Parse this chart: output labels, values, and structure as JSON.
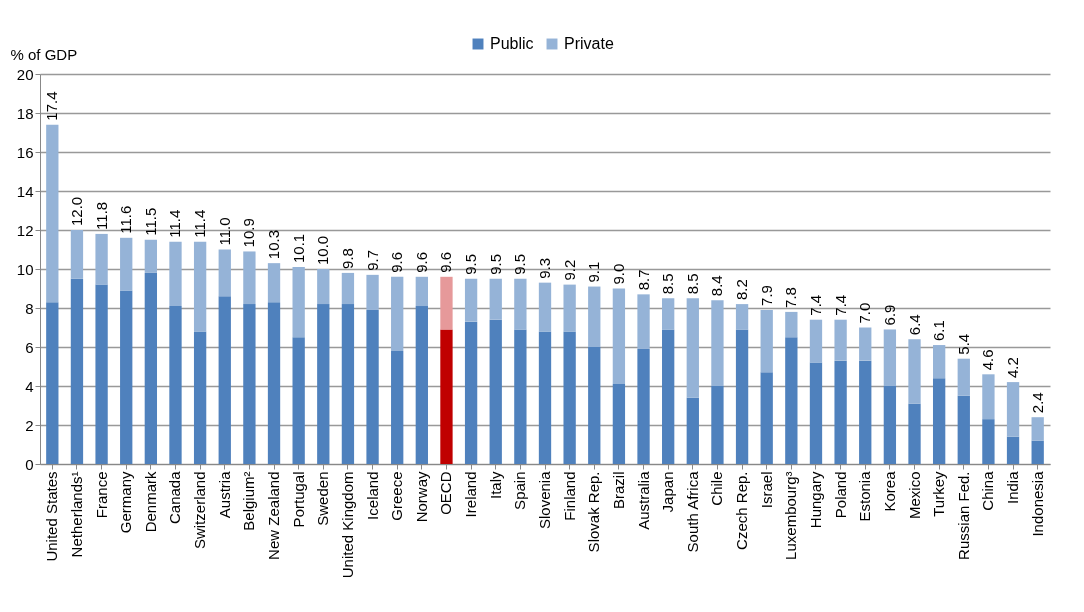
{
  "chart_data": {
    "type": "bar",
    "stacked": true,
    "ylabel": "% of GDP",
    "legend": "top",
    "grid": "y",
    "categories": [
      "United States",
      "Netherlands¹",
      "France",
      "Germany",
      "Denmark",
      "Canada",
      "Switzerland",
      "Austria",
      "Belgium²",
      "New Zealand",
      "Portugal",
      "Sweden",
      "United Kingdom",
      "Iceland",
      "Greece",
      "Norway",
      "OECD",
      "Ireland",
      "Italy",
      "Spain",
      "Slovenia",
      "Finland",
      "Slovak Rep.",
      "Brazil",
      "Australia",
      "Japan",
      "South Africa",
      "Chile",
      "Czech Rep.",
      "Israel",
      "Luxembourg³",
      "Hungary",
      "Poland",
      "Estonia",
      "Korea",
      "Mexico",
      "Turkey",
      "Russian Fed.",
      "China",
      "India",
      "Indonesia"
    ],
    "ylim": [
      0,
      20
    ],
    "yticks": [
      0,
      2,
      4,
      6,
      8,
      10,
      12,
      14,
      16,
      18,
      20
    ],
    "series": [
      {
        "name": "Public",
        "color": "#4f81bd",
        "colors": [
          "#4f81bd",
          "#4f81bd",
          "#4f81bd",
          "#4f81bd",
          "#4f81bd",
          "#4f81bd",
          "#4f81bd",
          "#4f81bd",
          "#4f81bd",
          "#4f81bd",
          "#4f81bd",
          "#4f81bd",
          "#4f81bd",
          "#4f81bd",
          "#4f81bd",
          "#4f81bd",
          "#c00000",
          "#4f81bd",
          "#4f81bd",
          "#4f81bd",
          "#4f81bd",
          "#4f81bd",
          "#4f81bd",
          "#4f81bd",
          "#4f81bd",
          "#4f81bd",
          "#4f81bd",
          "#4f81bd",
          "#4f81bd",
          "#4f81bd",
          "#4f81bd",
          "#4f81bd",
          "#4f81bd",
          "#4f81bd",
          "#4f81bd",
          "#4f81bd",
          "#4f81bd",
          "#4f81bd",
          "#4f81bd",
          "#4f81bd",
          "#4f81bd"
        ],
        "values": [
          8.3,
          9.5,
          9.2,
          8.9,
          9.8,
          8.1,
          6.8,
          8.6,
          8.2,
          8.3,
          6.5,
          8.2,
          8.2,
          7.9,
          5.8,
          8.1,
          6.9,
          7.3,
          7.4,
          6.9,
          6.8,
          6.8,
          6.0,
          4.1,
          5.9,
          6.9,
          3.4,
          4.0,
          6.9,
          4.7,
          6.5,
          5.2,
          5.3,
          5.3,
          4.0,
          3.1,
          4.4,
          3.5,
          2.3,
          1.4,
          1.2
        ]
      },
      {
        "name": "Private",
        "color": "#95b3d7",
        "colors": [
          "#95b3d7",
          "#95b3d7",
          "#95b3d7",
          "#95b3d7",
          "#95b3d7",
          "#95b3d7",
          "#95b3d7",
          "#95b3d7",
          "#95b3d7",
          "#95b3d7",
          "#95b3d7",
          "#95b3d7",
          "#95b3d7",
          "#95b3d7",
          "#95b3d7",
          "#95b3d7",
          "#e6999a",
          "#95b3d7",
          "#95b3d7",
          "#95b3d7",
          "#95b3d7",
          "#95b3d7",
          "#95b3d7",
          "#95b3d7",
          "#95b3d7",
          "#95b3d7",
          "#95b3d7",
          "#95b3d7",
          "#95b3d7",
          "#95b3d7",
          "#95b3d7",
          "#95b3d7",
          "#95b3d7",
          "#95b3d7",
          "#95b3d7",
          "#95b3d7",
          "#95b3d7",
          "#95b3d7",
          "#95b3d7",
          "#95b3d7",
          "#95b3d7"
        ],
        "values": [
          9.1,
          2.5,
          2.6,
          2.7,
          1.7,
          3.3,
          4.6,
          2.4,
          2.7,
          2.0,
          3.6,
          1.8,
          1.6,
          1.8,
          3.8,
          1.5,
          2.7,
          2.2,
          2.1,
          2.6,
          2.5,
          2.4,
          3.1,
          4.9,
          2.8,
          1.6,
          5.1,
          4.4,
          1.3,
          3.2,
          1.3,
          2.2,
          2.1,
          1.7,
          2.9,
          3.3,
          1.7,
          1.9,
          2.3,
          2.8,
          1.2
        ]
      }
    ],
    "totals": [
      "17.4",
      "12.0",
      "11.8",
      "11.6",
      "11.5",
      "11.4",
      "11.4",
      "11.0",
      "10.9",
      "10.3",
      "10.1",
      "10.0",
      "9.8",
      "9.7",
      "9.6",
      "9.6",
      "9.6",
      "9.5",
      "9.5",
      "9.5",
      "9.3",
      "9.2",
      "9.1",
      "9.0",
      "8.7",
      "8.5",
      "8.5",
      "8.4",
      "8.2",
      "7.9",
      "7.8",
      "7.4",
      "7.4",
      "7.0",
      "6.9",
      "6.4",
      "6.1",
      "5.4",
      "4.6",
      "4.2",
      "2.4"
    ]
  }
}
